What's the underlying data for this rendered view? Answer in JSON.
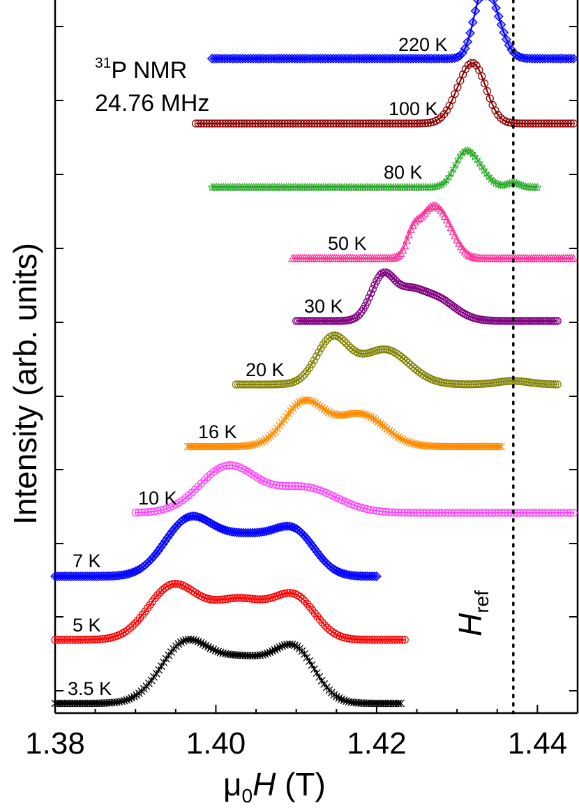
{
  "chart_data": {
    "type": "line",
    "title": "",
    "annotation": {
      "nucleus_sup": "31",
      "nucleus": "P NMR",
      "frequency": "24.76 MHz",
      "reference_label": "H",
      "reference_sub": "ref",
      "reference_field": 1.437
    },
    "xlabel": {
      "prefix": "μ",
      "prefix_sub": "0",
      "italic": "H",
      "unit": " (T)"
    },
    "ylabel": "Intensity (arb. units)",
    "xlim": [
      1.38,
      1.445
    ],
    "x_ticks": [
      "1.38",
      "1.40",
      "1.42",
      "1.44"
    ],
    "x_tick_values": [
      1.38,
      1.4,
      1.42,
      1.44
    ],
    "grid": false,
    "series": [
      {
        "name": "220 K",
        "color": "#0000ff",
        "marker": "diamond",
        "baseline": 0.95,
        "x_range": [
          1.3995,
          1.4445
        ],
        "shape": [
          [
            1.433,
            0.75,
            0.0011
          ],
          [
            1.4345,
            0.65,
            0.0013
          ]
        ]
      },
      {
        "name": "100 K",
        "color": "#8b0000",
        "marker": "circle",
        "baseline": 0.95,
        "x_range": [
          1.3975,
          1.4445
        ],
        "shape": [
          [
            1.4323,
            0.7,
            0.0015
          ],
          [
            1.4305,
            0.3,
            0.0015
          ]
        ]
      },
      {
        "name": "80 K",
        "color": "#22aa22",
        "marker": "star",
        "baseline": 0.95,
        "x_range": [
          1.3995,
          1.44
        ],
        "shape": [
          [
            1.431,
            0.6,
            0.0013
          ],
          [
            1.433,
            0.2,
            0.0012
          ],
          [
            1.437,
            0.08,
            0.0008
          ]
        ]
      },
      {
        "name": "50 K",
        "color": "#ff3399",
        "marker": "triangle",
        "baseline": 0.95,
        "x_range": [
          1.4095,
          1.4445
        ],
        "shape": [
          [
            1.4268,
            0.75,
            0.0015
          ],
          [
            1.4245,
            0.3,
            0.0008
          ],
          [
            1.429,
            0.3,
            0.0013
          ]
        ]
      },
      {
        "name": "30 K",
        "color": "#800080",
        "marker": "circle",
        "baseline": 0.95,
        "x_range": [
          1.41,
          1.4425
        ],
        "shape": [
          [
            1.4208,
            0.65,
            0.0015
          ],
          [
            1.427,
            0.35,
            0.0025
          ],
          [
            1.424,
            0.25,
            0.0015
          ]
        ]
      },
      {
        "name": "20 K",
        "color": "#808000",
        "marker": "circle",
        "baseline": 0.95,
        "x_range": [
          1.4025,
          1.4425
        ],
        "shape": [
          [
            1.4145,
            0.65,
            0.002
          ],
          [
            1.421,
            0.5,
            0.003
          ],
          [
            1.437,
            0.05,
            0.002
          ]
        ]
      },
      {
        "name": "16 K",
        "color": "#ff8c00",
        "marker": "cross",
        "baseline": 0.95,
        "x_range": [
          1.3965,
          1.4355
        ],
        "shape": [
          [
            1.411,
            0.55,
            0.0025
          ],
          [
            1.418,
            0.4,
            0.003
          ]
        ]
      },
      {
        "name": "10 K",
        "color": "#ff44ff",
        "marker": "circle",
        "baseline": 0.95,
        "x_range": [
          1.39,
          1.4445
        ],
        "shape": [
          [
            1.4015,
            0.55,
            0.0035
          ],
          [
            1.411,
            0.3,
            0.004
          ]
        ]
      },
      {
        "name": "7 K",
        "color": "#0000ff",
        "marker": "diamond",
        "baseline": 0.95,
        "x_range": [
          1.38,
          1.42
        ],
        "shape": [
          [
            1.3965,
            0.6,
            0.003
          ],
          [
            1.404,
            0.45,
            0.004
          ],
          [
            1.41,
            0.4,
            0.0025
          ]
        ]
      },
      {
        "name": "5 K",
        "color": "#ff0000",
        "marker": "circle",
        "baseline": 0.95,
        "x_range": [
          1.38,
          1.4235
        ],
        "shape": [
          [
            1.3945,
            0.7,
            0.003
          ],
          [
            1.403,
            0.55,
            0.004
          ],
          [
            1.41,
            0.5,
            0.0025
          ]
        ]
      },
      {
        "name": "3.5 K",
        "color": "#000000",
        "marker": "cross",
        "baseline": 0.95,
        "x_range": [
          1.38,
          1.423
        ],
        "shape": [
          [
            1.396,
            0.75,
            0.003
          ],
          [
            1.4035,
            0.6,
            0.004
          ],
          [
            1.41,
            0.62,
            0.0025
          ]
        ]
      }
    ]
  }
}
